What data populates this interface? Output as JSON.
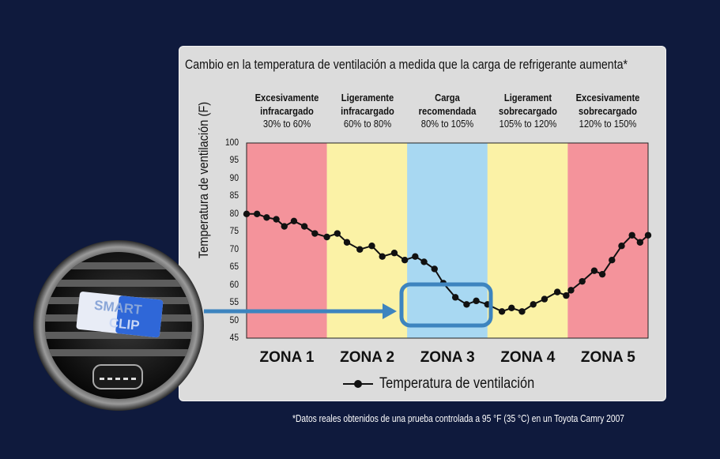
{
  "footnote": "*Datos reales obtenidos de una prueba controlada a 95 °F (35 °C) en un Toyota Camry 2007",
  "product": {
    "logo_line1": "SMART",
    "logo_line2": "CLIP"
  },
  "colors": {
    "background": "#0f1a3d",
    "panel": "#dcdcdc",
    "zone_red": "#f4939b",
    "zone_yellow": "#fbf2a6",
    "zone_blue": "#a8d8f2",
    "highlight": "#3d84bf",
    "line": "#111111"
  },
  "chart_data": {
    "type": "line",
    "title": "Cambio en la temperatura de ventilación a medida que la carga de refrigerante aumenta*",
    "ylabel": "Temperatura de ventilación (F)",
    "xlabel": "",
    "ylim": [
      45,
      100
    ],
    "yticks": [
      "100",
      "95",
      "90",
      "85",
      "80",
      "75",
      "70",
      "65",
      "60",
      "55",
      "50",
      "45"
    ],
    "grid": false,
    "legend": "bottom-center",
    "series": [
      {
        "name": "Temperatura de ventilación",
        "x": [
          0,
          0.13,
          0.25,
          0.37,
          0.47,
          0.59,
          0.72,
          0.85,
          1.0,
          1.13,
          1.25,
          1.41,
          1.56,
          1.69,
          1.84,
          1.97,
          2.1,
          2.21,
          2.34,
          2.45,
          2.6,
          2.74,
          2.86,
          3.0,
          3.18,
          3.3,
          3.43,
          3.57,
          3.71,
          3.87,
          3.98,
          4.04,
          4.18,
          4.33,
          4.43,
          4.55,
          4.67,
          4.8,
          4.9,
          5.0
        ],
        "values": [
          80,
          80,
          79,
          78.5,
          76.5,
          78,
          76.5,
          74.5,
          73.5,
          74.5,
          72,
          70,
          71,
          68,
          69,
          67,
          68,
          66.5,
          64.5,
          60.5,
          56.5,
          54.5,
          55.5,
          54.5,
          52.5,
          53.5,
          52.5,
          54.5,
          56,
          58,
          57,
          58.5,
          61,
          64,
          63,
          67,
          71,
          74,
          72,
          74
        ]
      }
    ],
    "zones": [
      {
        "label": "ZONA 1",
        "heading": "Excesivamente infracargado",
        "range": "30% to 60%",
        "color": "#f4939b"
      },
      {
        "label": "ZONA 2",
        "heading": "Ligeramente infracargado",
        "range": "60% to 80%",
        "color": "#fbf2a6"
      },
      {
        "label": "ZONA 3",
        "heading": "Carga recomendada",
        "range": "80% to 105%",
        "color": "#a8d8f2"
      },
      {
        "label": "ZONA 4",
        "heading": "Ligerament sobrecargado",
        "range": "105% to 120%",
        "color": "#fbf2a6"
      },
      {
        "label": "ZONA 5",
        "heading": "Excesivamente sobrecargado",
        "range": "120% to 150%",
        "color": "#f4939b"
      }
    ]
  }
}
